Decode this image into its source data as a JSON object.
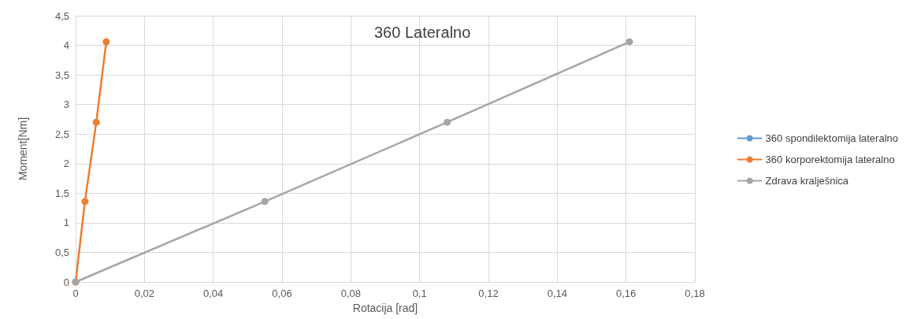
{
  "chart_data": {
    "type": "line",
    "title": "360 Lateralno",
    "xlabel": "Rotacija [rad]",
    "ylabel": "Moment[Nm]",
    "series": [
      {
        "name": "360 spondilektomija lateralno",
        "color": "#5b9bd5",
        "values": [
          null,
          null,
          null,
          null
        ]
      },
      {
        "name": "360 korporektomija lateralno",
        "color": "#ed7d31",
        "x": [
          0,
          0.0027,
          0.006,
          0.0089
        ],
        "values": [
          0,
          1.36,
          2.7,
          4.06
        ]
      },
      {
        "name": "Zdrava kralješnica",
        "color": "#a5a5a5",
        "x": [
          0,
          0.055,
          0.108,
          0.161
        ],
        "values": [
          0,
          1.36,
          2.7,
          4.06
        ]
      }
    ],
    "xlim": [
      0,
      0.18
    ],
    "xticks": [
      0,
      {
        "value": 0.02,
        "label": "0,02"
      },
      {
        "value": 0.04,
        "label": "0,04"
      },
      {
        "value": 0.06,
        "label": "0,06"
      },
      {
        "value": 0.08,
        "label": "0,08"
      },
      {
        "value": 0.1,
        "label": "0,1"
      },
      {
        "value": 0.12,
        "label": "0,12"
      },
      {
        "value": 0.14,
        "label": "0,14"
      },
      {
        "value": 0.16,
        "label": "0,16"
      },
      {
        "value": 0.18,
        "label": "0,18"
      }
    ],
    "ylim": [
      0,
      4.5
    ],
    "yticks": [
      0,
      {
        "value": 0.5,
        "label": "0,5"
      },
      1,
      {
        "value": 1.5,
        "label": "1,5"
      },
      2,
      {
        "value": 2.5,
        "label": "2,5"
      },
      3,
      {
        "value": 3.5,
        "label": "3,5"
      },
      4,
      {
        "value": 4.5,
        "label": "4,5"
      }
    ],
    "grid": true,
    "legend": "right",
    "marker": "circle",
    "line_style": "solid"
  }
}
